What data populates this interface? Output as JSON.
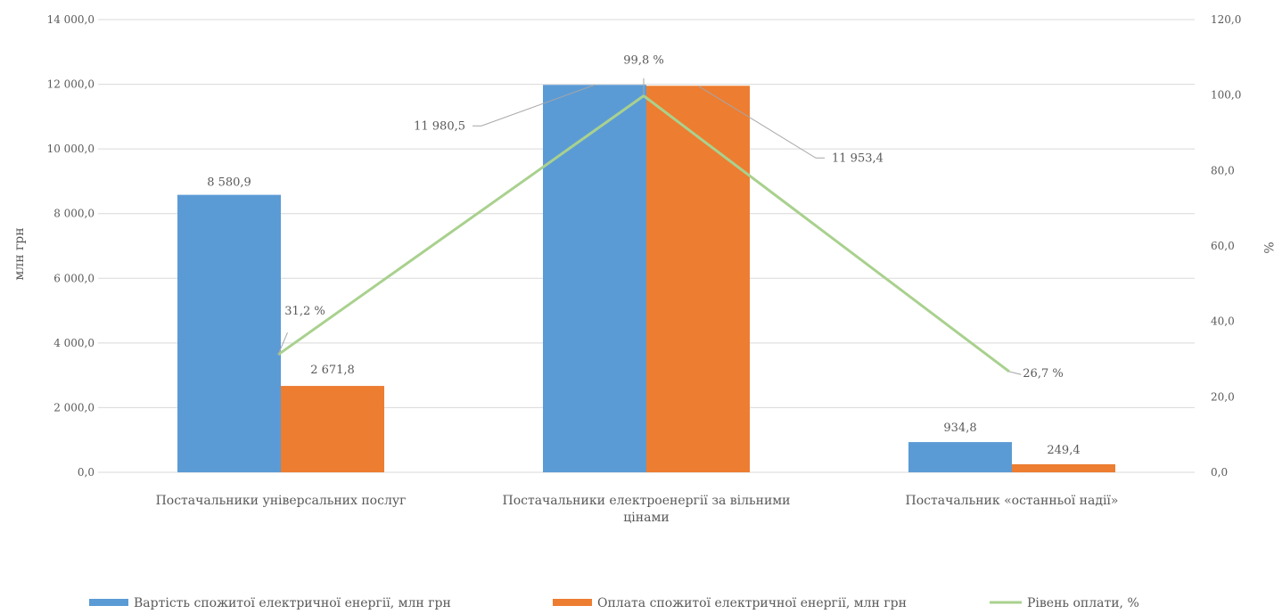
{
  "chart_data": {
    "type": "bar",
    "combo": "bar + line (secondary axis)",
    "title": "",
    "categories": [
      [
        "Постачальники універсальних послуг"
      ],
      [
        "Постачальники електроенергії за вільними",
        "цінами"
      ],
      [
        "Постачальник «останньої надії»"
      ]
    ],
    "series": [
      {
        "name": "Вартість спожитої електричної енергії, млн грн",
        "type": "bar",
        "axis": "left",
        "color": "#5B9BD5",
        "values": [
          8580.9,
          11980.5,
          934.8
        ],
        "labels": [
          "8 580,9",
          "11 980,5",
          "934,8"
        ]
      },
      {
        "name": "Оплата спожитої електричної енергії, млн грн",
        "type": "bar",
        "axis": "left",
        "color": "#ED7D31",
        "values": [
          2671.8,
          11953.4,
          249.4
        ],
        "labels": [
          "2 671,8",
          "11 953,4",
          "249,4"
        ]
      },
      {
        "name": "Рівень оплати, %",
        "type": "line",
        "axis": "right",
        "color": "#A9D18E",
        "values": [
          31.2,
          99.8,
          26.7
        ],
        "labels": [
          "31,2 %",
          "99,8 %",
          "26,7 %"
        ]
      }
    ],
    "y_left": {
      "label": "млн грн",
      "range": [
        0,
        14000
      ],
      "ticks": [
        "0,0",
        "2 000,0",
        "4 000,0",
        "6 000,0",
        "8 000,0",
        "10 000,0",
        "12 000,0",
        "14 000,0"
      ]
    },
    "y_right": {
      "label": "%",
      "range": [
        0,
        120
      ],
      "ticks": [
        "0,0",
        "20,0",
        "40,0",
        "60,0",
        "80,0",
        "100,0",
        "120,0"
      ]
    },
    "grid": true,
    "legend_position": "bottom"
  }
}
